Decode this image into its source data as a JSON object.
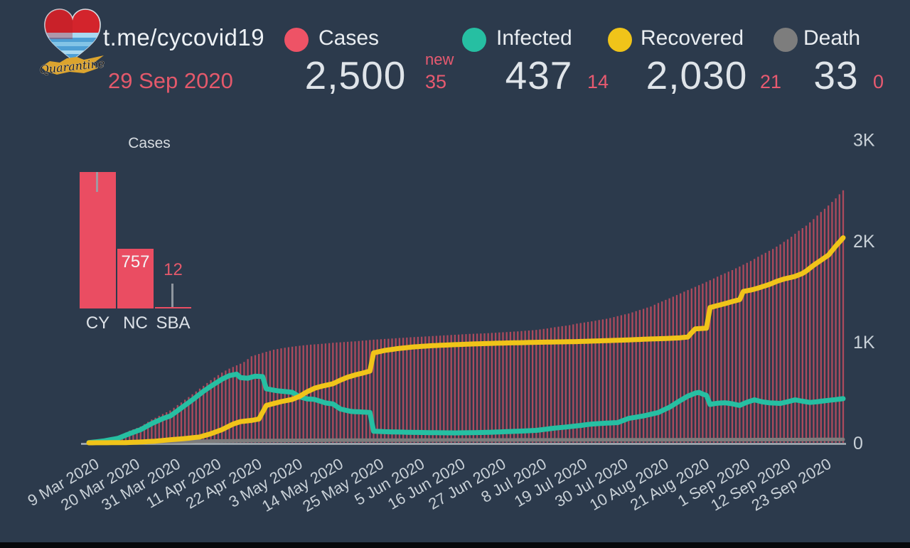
{
  "app": {
    "background": "#2c3a4c",
    "accent_red": "#ee5366",
    "accent_teal": "#26bfa2",
    "accent_yellow": "#f0c419",
    "accent_gray": "#7d7d7d",
    "text_light": "#e9edf1",
    "text_axis": "#c9d1d8"
  },
  "header": {
    "channel": "t.me/cycovid19",
    "date": "29 Sep 2020",
    "logo_caption": "Quarantine"
  },
  "stats": [
    {
      "id": "cases",
      "label": "Cases",
      "value": "2,500",
      "delta_prefix": "new",
      "delta": "35",
      "color": "#ee5366"
    },
    {
      "id": "infected",
      "label": "Infected",
      "value": "437",
      "delta": "14",
      "color": "#26bfa2"
    },
    {
      "id": "recovered",
      "label": "Recovered",
      "value": "2,030",
      "delta": "21",
      "color": "#f0c419"
    },
    {
      "id": "death",
      "label": "Death",
      "value": "33",
      "delta": "0",
      "color": "#7d7d7d"
    }
  ],
  "chart_data": [
    {
      "type": "bar",
      "id": "cases-by-region",
      "title": "Cases",
      "categories": [
        "CY",
        "NC",
        "SBA"
      ],
      "values": [
        1731,
        757,
        12
      ],
      "value_labels": [
        "",
        "757",
        "12"
      ],
      "bar_color": "#ea4d62",
      "ylim": [
        0,
        1731
      ]
    },
    {
      "type": "bar+line",
      "id": "covid-timeline",
      "start_date": "9 Mar 2020",
      "end_date": "29 Sep 2020",
      "days": 205,
      "ylim": [
        0,
        3000
      ],
      "y_ticks": [
        0,
        1000,
        2000,
        3000
      ],
      "y_tick_labels": [
        "0",
        "1K",
        "2K",
        "3K"
      ],
      "x_tick_days": [
        0,
        11,
        22,
        33,
        44,
        55,
        66,
        77,
        88,
        99,
        110,
        121,
        132,
        143,
        154,
        165,
        176,
        187,
        198
      ],
      "x_tick_labels": [
        "9 Mar 2020",
        "20 Mar 2020",
        "31 Mar 2020",
        "11 Apr 2020",
        "22 Apr 2020",
        "3 May 2020",
        "14 May 2020",
        "25 May 2020",
        "5 Jun 2020",
        "16 Jun 2020",
        "27 Jun 2020",
        "8 Jul 2020",
        "19 Jul 2020",
        "30 Jul 2020",
        "10 Aug 2020",
        "21 Aug 2020",
        "1 Sep 2020",
        "12 Sep 2020",
        "23 Sep 2020"
      ],
      "interpolation": "linear",
      "series": [
        {
          "name": "Cases",
          "type": "bar",
          "color": "#ee5366",
          "keypoints": [
            [
              0,
              4
            ],
            [
              2,
              10
            ],
            [
              4,
              26
            ],
            [
              6,
              46
            ],
            [
              8,
              67
            ],
            [
              11,
              120
            ],
            [
              14,
              162
            ],
            [
              17,
              230
            ],
            [
              20,
              285
            ],
            [
              22,
              320
            ],
            [
              25,
              400
            ],
            [
              28,
              480
            ],
            [
              31,
              564
            ],
            [
              33,
              620
            ],
            [
              36,
              695
            ],
            [
              38,
              735
            ],
            [
              40,
              767
            ],
            [
              42,
              800
            ],
            [
              44,
              857
            ],
            [
              46,
              880
            ],
            [
              48,
              901
            ],
            [
              50,
              922
            ],
            [
              52,
              935
            ],
            [
              55,
              952
            ],
            [
              58,
              965
            ],
            [
              60,
              972
            ],
            [
              63,
              980
            ],
            [
              66,
              990
            ],
            [
              69,
              998
            ],
            [
              72,
              1005
            ],
            [
              75,
              1014
            ],
            [
              77,
              1021
            ],
            [
              80,
              1028
            ],
            [
              84,
              1038
            ],
            [
              88,
              1047
            ],
            [
              92,
              1055
            ],
            [
              96,
              1063
            ],
            [
              99,
              1070
            ],
            [
              103,
              1078
            ],
            [
              107,
              1084
            ],
            [
              110,
              1090
            ],
            [
              113,
              1096
            ],
            [
              117,
              1106
            ],
            [
              121,
              1118
            ],
            [
              124,
              1132
            ],
            [
              127,
              1150
            ],
            [
              130,
              1165
            ],
            [
              132,
              1180
            ],
            [
              135,
              1197
            ],
            [
              138,
              1215
            ],
            [
              141,
              1235
            ],
            [
              143,
              1255
            ],
            [
              146,
              1280
            ],
            [
              149,
              1315
            ],
            [
              152,
              1350
            ],
            [
              154,
              1385
            ],
            [
              157,
              1430
            ],
            [
              160,
              1480
            ],
            [
              162,
              1512
            ],
            [
              165,
              1560
            ],
            [
              168,
              1610
            ],
            [
              171,
              1662
            ],
            [
              174,
              1710
            ],
            [
              176,
              1745
            ],
            [
              179,
              1800
            ],
            [
              182,
              1862
            ],
            [
              185,
              1920
            ],
            [
              187,
              1965
            ],
            [
              190,
              2040
            ],
            [
              192,
              2100
            ],
            [
              194,
              2150
            ],
            [
              196,
              2215
            ],
            [
              198,
              2285
            ],
            [
              200,
              2350
            ],
            [
              202,
              2420
            ],
            [
              204,
              2500
            ]
          ]
        },
        {
          "name": "Infected",
          "type": "line",
          "color": "#26bfa2",
          "keypoints": [
            [
              0,
              2
            ],
            [
              4,
              18
            ],
            [
              8,
              46
            ],
            [
              11,
              90
            ],
            [
              14,
              130
            ],
            [
              17,
              190
            ],
            [
              20,
              240
            ],
            [
              22,
              265
            ],
            [
              25,
              345
            ],
            [
              28,
              425
            ],
            [
              31,
              510
            ],
            [
              33,
              560
            ],
            [
              36,
              630
            ],
            [
              38,
              665
            ],
            [
              40,
              680
            ],
            [
              41,
              645
            ],
            [
              43,
              640
            ],
            [
              45,
              660
            ],
            [
              47,
              655
            ],
            [
              48,
              535
            ],
            [
              51,
              515
            ],
            [
              55,
              500
            ],
            [
              57,
              455
            ],
            [
              59,
              435
            ],
            [
              61,
              430
            ],
            [
              64,
              395
            ],
            [
              66,
              385
            ],
            [
              68,
              335
            ],
            [
              71,
              310
            ],
            [
              74,
              305
            ],
            [
              76,
              300
            ],
            [
              77,
              115
            ],
            [
              80,
              110
            ],
            [
              84,
              106
            ],
            [
              88,
              103
            ],
            [
              93,
              100
            ],
            [
              99,
              98
            ],
            [
              105,
              101
            ],
            [
              110,
              106
            ],
            [
              115,
              113
            ],
            [
              121,
              123
            ],
            [
              126,
              146
            ],
            [
              130,
              160
            ],
            [
              133,
              172
            ],
            [
              136,
              186
            ],
            [
              139,
              193
            ],
            [
              143,
              200
            ],
            [
              146,
              242
            ],
            [
              150,
              266
            ],
            [
              154,
              300
            ],
            [
              157,
              352
            ],
            [
              160,
              420
            ],
            [
              162,
              462
            ],
            [
              164,
              492
            ],
            [
              165,
              500
            ],
            [
              166,
              482
            ],
            [
              167,
              470
            ],
            [
              168,
              380
            ],
            [
              170,
              392
            ],
            [
              172,
              396
            ],
            [
              174,
              386
            ],
            [
              176,
              370
            ],
            [
              178,
              402
            ],
            [
              180,
              426
            ],
            [
              182,
              406
            ],
            [
              184,
              396
            ],
            [
              187,
              390
            ],
            [
              189,
              406
            ],
            [
              191,
              426
            ],
            [
              193,
              412
            ],
            [
              195,
              400
            ],
            [
              197,
              406
            ],
            [
              198,
              412
            ],
            [
              200,
              420
            ],
            [
              202,
              428
            ],
            [
              204,
              437
            ]
          ]
        },
        {
          "name": "Recovered",
          "type": "line",
          "color": "#f0c419",
          "keypoints": [
            [
              0,
              0
            ],
            [
              10,
              2
            ],
            [
              14,
              8
            ],
            [
              18,
              16
            ],
            [
              22,
              30
            ],
            [
              26,
              42
            ],
            [
              30,
              58
            ],
            [
              33,
              90
            ],
            [
              36,
              130
            ],
            [
              39,
              185
            ],
            [
              41,
              210
            ],
            [
              44,
              222
            ],
            [
              46,
              235
            ],
            [
              48,
              370
            ],
            [
              52,
              408
            ],
            [
              55,
              430
            ],
            [
              57,
              460
            ],
            [
              59,
              505
            ],
            [
              61,
              540
            ],
            [
              63,
              560
            ],
            [
              66,
              585
            ],
            [
              68,
              620
            ],
            [
              70,
              650
            ],
            [
              72,
              672
            ],
            [
              74,
              690
            ],
            [
              76,
              710
            ],
            [
              77,
              890
            ],
            [
              80,
              915
            ],
            [
              84,
              935
            ],
            [
              88,
              950
            ],
            [
              93,
              962
            ],
            [
              99,
              972
            ],
            [
              105,
              980
            ],
            [
              110,
              986
            ],
            [
              116,
              991
            ],
            [
              121,
              995
            ],
            [
              127,
              999
            ],
            [
              132,
              1002
            ],
            [
              137,
              1008
            ],
            [
              143,
              1015
            ],
            [
              148,
              1022
            ],
            [
              152,
              1028
            ],
            [
              156,
              1033
            ],
            [
              160,
              1040
            ],
            [
              162,
              1048
            ],
            [
              163,
              1090
            ],
            [
              164,
              1128
            ],
            [
              167,
              1135
            ],
            [
              168,
              1340
            ],
            [
              171,
              1368
            ],
            [
              173,
              1388
            ],
            [
              175,
              1408
            ],
            [
              176,
              1418
            ],
            [
              177,
              1498
            ],
            [
              179,
              1512
            ],
            [
              181,
              1532
            ],
            [
              184,
              1568
            ],
            [
              186,
              1598
            ],
            [
              188,
              1622
            ],
            [
              191,
              1648
            ],
            [
              193,
              1678
            ],
            [
              194,
              1700
            ],
            [
              196,
              1758
            ],
            [
              198,
              1808
            ],
            [
              200,
              1858
            ],
            [
              202,
              1948
            ],
            [
              204,
              2030
            ]
          ]
        },
        {
          "name": "Death",
          "type": "line",
          "color": "#7d7d7d",
          "keypoints": [
            [
              0,
              0
            ],
            [
              10,
              0
            ],
            [
              12,
              1
            ],
            [
              15,
              3
            ],
            [
              18,
              6
            ],
            [
              22,
              9
            ],
            [
              26,
              12
            ],
            [
              30,
              15
            ],
            [
              33,
              17
            ],
            [
              37,
              19
            ],
            [
              41,
              21
            ],
            [
              44,
              22
            ],
            [
              50,
              23
            ],
            [
              55,
              24
            ],
            [
              60,
              25
            ],
            [
              66,
              26
            ],
            [
              72,
              26
            ],
            [
              77,
              27
            ],
            [
              88,
              27
            ],
            [
              99,
              28
            ],
            [
              110,
              28
            ],
            [
              121,
              29
            ],
            [
              132,
              29
            ],
            [
              143,
              30
            ],
            [
              154,
              30
            ],
            [
              165,
              31
            ],
            [
              176,
              31
            ],
            [
              187,
              32
            ],
            [
              194,
              32
            ],
            [
              198,
              33
            ],
            [
              204,
              33
            ]
          ]
        }
      ]
    }
  ]
}
